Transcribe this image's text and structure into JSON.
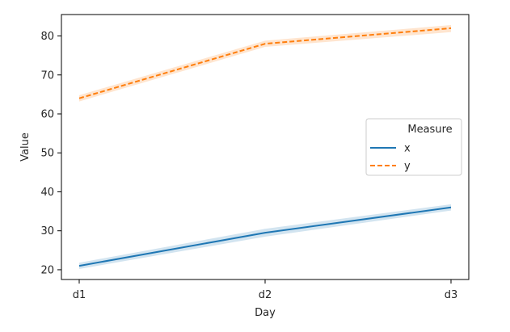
{
  "chart_data": {
    "type": "line",
    "title": "",
    "xlabel": "Day",
    "ylabel": "Value",
    "categories": [
      "d1",
      "d2",
      "d3"
    ],
    "ylim": [
      17.5,
      85.5
    ],
    "yticks": [
      20,
      30,
      40,
      50,
      60,
      70,
      80
    ],
    "grid": false,
    "legend": {
      "title": "Measure",
      "placement": "center-right"
    },
    "series": [
      {
        "name": "x",
        "values": [
          21,
          29.5,
          36
        ],
        "ci_low": [
          20.2,
          28.5,
          35.2
        ],
        "ci_high": [
          21.8,
          30.5,
          36.8
        ],
        "color": "#1f77b4",
        "dash": "solid"
      },
      {
        "name": "y",
        "values": [
          64,
          78,
          82
        ],
        "ci_low": [
          63.2,
          77.2,
          81.0
        ],
        "ci_high": [
          64.8,
          78.8,
          82.8
        ],
        "color": "#ff7f0e",
        "dash": "dashed"
      }
    ]
  }
}
